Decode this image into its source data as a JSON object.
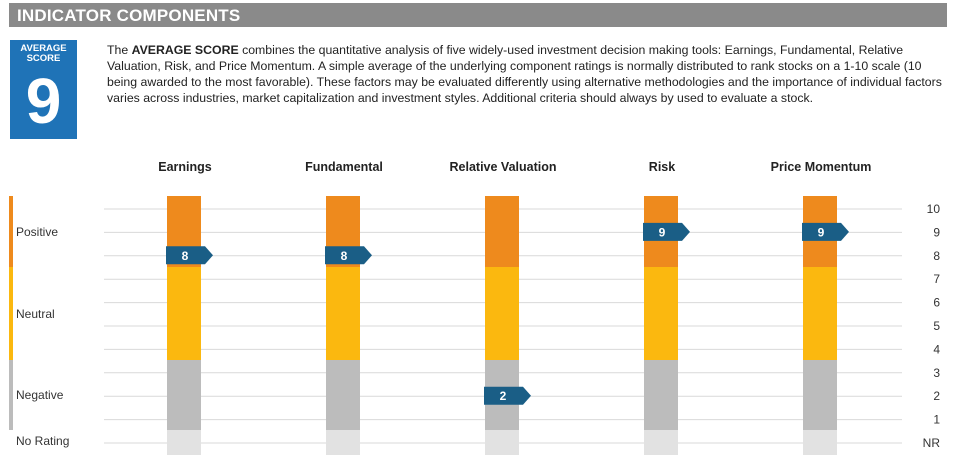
{
  "header": {
    "title": "INDICATOR COMPONENTS"
  },
  "badge": {
    "label": "AVERAGE\nSCORE",
    "value": "9",
    "color": "#1f73b7"
  },
  "description": {
    "prefix": "The ",
    "emphasis": "AVERAGE SCORE",
    "text": " combines the quantitative analysis of five widely-used investment decision making tools: Earnings, Fundamental, Relative Valuation, Risk, and Price Momentum. A simple average of the underlying component ratings is normally distributed to rank stocks on a 1-10 scale (10 being awarded to the most favorable). These factors may be evaluated differently using alternative methodologies and the importance of individual factors varies across industries, market capitalization and investment styles. Additional criteria should always by used to evaluate a stock."
  },
  "chart_data": {
    "type": "bar",
    "categories": [
      "Earnings",
      "Fundamental",
      "Relative Valuation",
      "Risk",
      "Price Momentum"
    ],
    "values": [
      8,
      8,
      2,
      9,
      9
    ],
    "y_ticks": [
      "NR",
      "1",
      "2",
      "3",
      "4",
      "5",
      "6",
      "7",
      "8",
      "9",
      "10"
    ],
    "ylim": [
      0,
      10
    ],
    "rating_bands": [
      {
        "label": "Positive",
        "from": 8,
        "to": 10,
        "color": "#ee8a1d"
      },
      {
        "label": "Neutral",
        "from": 4,
        "to": 7,
        "color": "#fbb80f"
      },
      {
        "label": "Negative",
        "from": 1,
        "to": 3,
        "color": "#bcbcbc"
      },
      {
        "label": "No Rating",
        "from": 0,
        "to": 0,
        "color": "#e2e2e2"
      }
    ],
    "band_segments": [
      {
        "categories": [
          0,
          1,
          3,
          4
        ],
        "positive_from": 7.5
      },
      {
        "categories": [
          2
        ],
        "positive_from": 7.5
      }
    ],
    "marker_color": "#1a5e86",
    "grid": true
  }
}
